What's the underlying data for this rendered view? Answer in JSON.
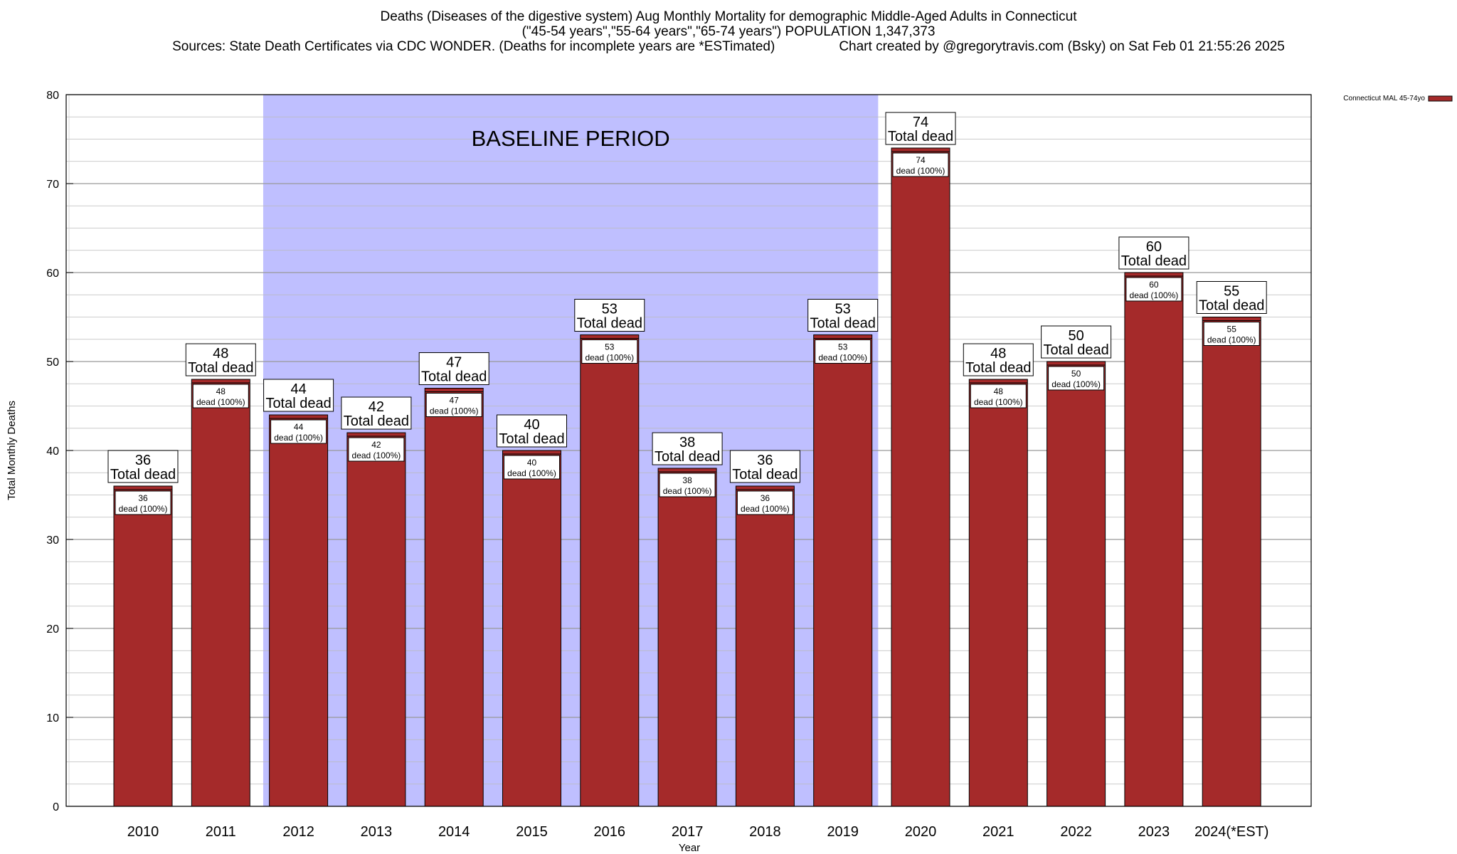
{
  "title": {
    "line1": "Deaths (Diseases of the digestive system) Aug Monthly Mortality for demographic Middle-Aged Adults in Connecticut",
    "line2": "(\"45-54 years\",\"55-64 years\",\"65-74 years\") POPULATION 1,347,373",
    "line3_left": "Sources: State Death Certificates via CDC WONDER. (Deaths for incomplete years are *ESTimated)",
    "line3_right": "Chart created by @gregorytravis.com (Bsky) on Sat Feb 01 21:55:26 2025"
  },
  "chart_data": {
    "type": "bar",
    "xlabel": "Year",
    "ylabel": "Total Monthly Deaths",
    "ylim": [
      0,
      80
    ],
    "yticks": [
      0,
      10,
      20,
      30,
      40,
      50,
      60,
      70,
      80
    ],
    "grid": true,
    "legend": {
      "position": "top-right",
      "entry": "Connecticut MAL 45-74yo"
    },
    "categories": [
      "2010",
      "2011",
      "2012",
      "2013",
      "2014",
      "2015",
      "2016",
      "2017",
      "2018",
      "2019",
      "2020",
      "2021",
      "2022",
      "2023",
      "2024(*EST)"
    ],
    "series": [
      {
        "name": "Connecticut MAL 45-74yo",
        "values": [
          36,
          48,
          44,
          42,
          47,
          40,
          53,
          38,
          36,
          53,
          74,
          48,
          50,
          60,
          55
        ]
      }
    ],
    "total_label": "Total dead",
    "inner_label": "dead (100%)",
    "baseline": {
      "label": "BASELINE PERIOD",
      "start": "2012",
      "end": "2019"
    },
    "colors": {
      "bar": "#a52a2a",
      "baseline": "#bfbfff",
      "grid": "#bbbbbb"
    }
  }
}
